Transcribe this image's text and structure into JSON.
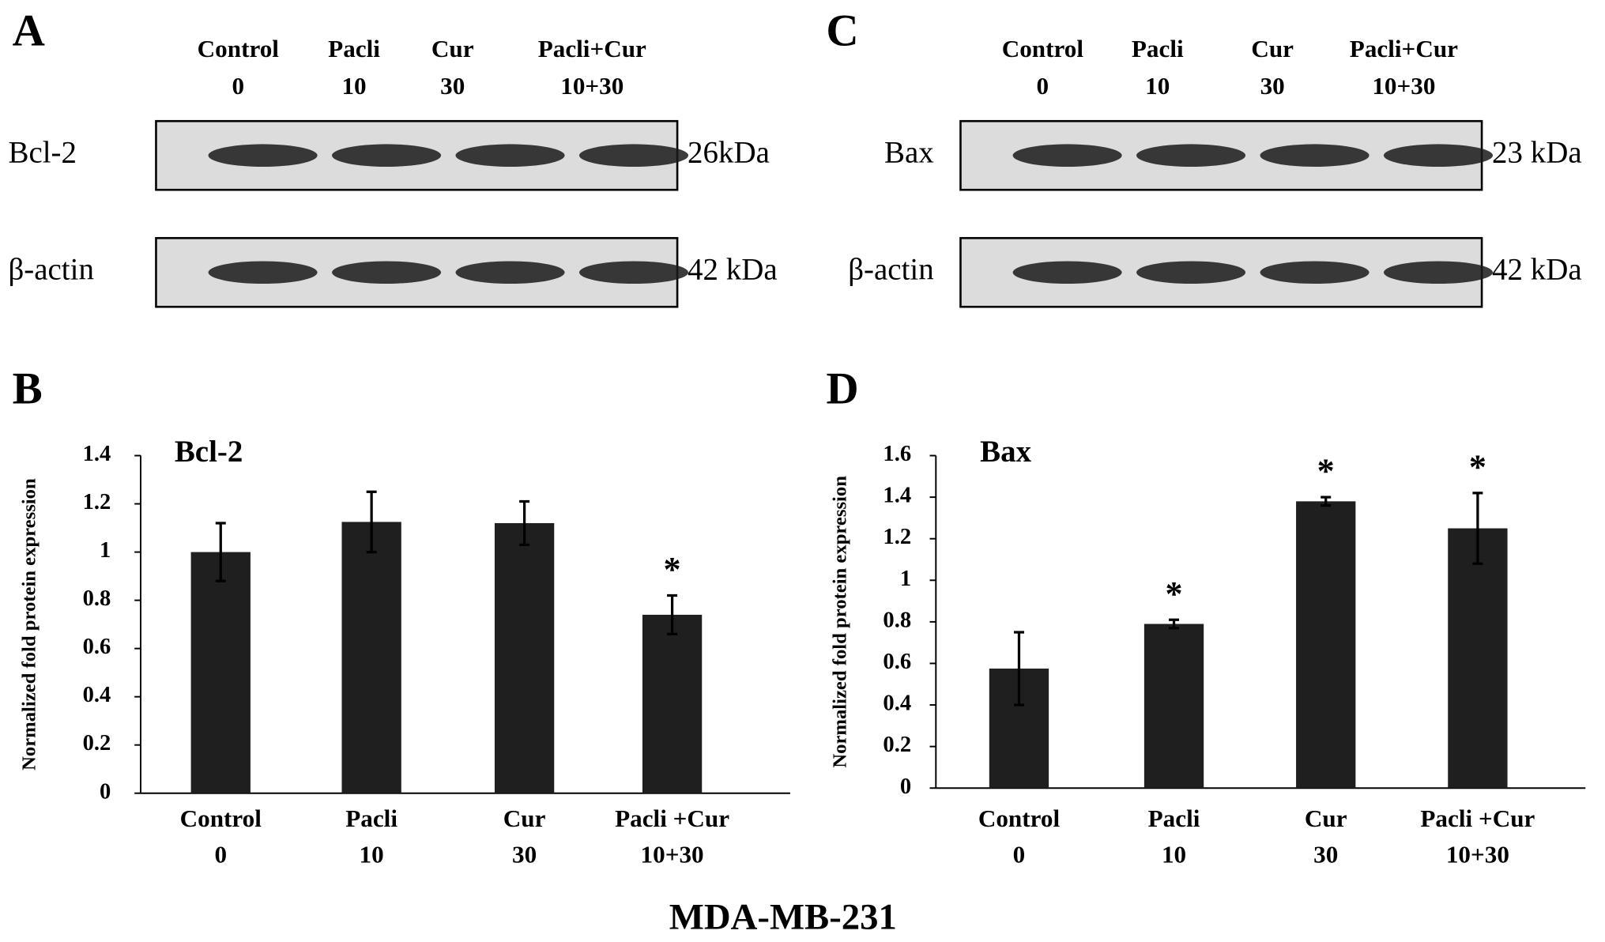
{
  "blots": [
    {
      "panel": "A",
      "lanes": [
        {
          "name": "Control",
          "dose": "0"
        },
        {
          "name": "Pacli",
          "dose": "10"
        },
        {
          "name": "Cur",
          "dose": "30"
        },
        {
          "name": "Pacli+Cur",
          "dose": "10+30"
        }
      ],
      "rows": [
        {
          "label": "Bcl-2",
          "size": "26kDa"
        },
        {
          "label": "β-actin",
          "size": "42 kDa"
        }
      ]
    },
    {
      "panel": "C",
      "lanes": [
        {
          "name": "Control",
          "dose": "0"
        },
        {
          "name": "Pacli",
          "dose": "10"
        },
        {
          "name": "Cur",
          "dose": "30"
        },
        {
          "name": "Pacli+Cur",
          "dose": "10+30"
        }
      ],
      "rows": [
        {
          "label": "Bax",
          "size": "23 kDa"
        },
        {
          "label": "β-actin",
          "size": "42 kDa"
        }
      ]
    }
  ],
  "chart_data": [
    {
      "type": "bar",
      "panel": "B",
      "title": "Bcl-2",
      "y_label": "Normalized fold protein expression",
      "categories": [
        "Control",
        "Pacli",
        "Cur",
        "Pacli +Cur"
      ],
      "sublabels": [
        "0",
        "10",
        "30",
        "10+30"
      ],
      "values": [
        1.0,
        1.125,
        1.12,
        0.74
      ],
      "errors": [
        0.12,
        0.125,
        0.09,
        0.08
      ],
      "significance": [
        null,
        null,
        null,
        "*"
      ],
      "color": "#1f1f1f",
      "ylim": [
        0,
        1.4
      ],
      "yticks": [
        0,
        0.2,
        0.4,
        0.6,
        0.8,
        1,
        1.2,
        1.4
      ]
    },
    {
      "type": "bar",
      "panel": "D",
      "title": "Bax",
      "y_label": "Normalized fold protein expression",
      "categories": [
        "Control",
        "Pacli",
        "Cur",
        "Pacli +Cur"
      ],
      "sublabels": [
        "0",
        "10",
        "30",
        "10+30"
      ],
      "values": [
        0.575,
        0.79,
        1.38,
        1.25
      ],
      "errors": [
        0.175,
        0.02,
        0.02,
        0.17
      ],
      "significance": [
        null,
        "*",
        "*",
        "*"
      ],
      "color": "#1f1f1f",
      "ylim": [
        0,
        1.6
      ],
      "yticks": [
        0,
        0.2,
        0.4,
        0.6,
        0.8,
        1,
        1.2,
        1.4,
        1.6
      ]
    }
  ],
  "cell_line": "MDA-MB-231"
}
